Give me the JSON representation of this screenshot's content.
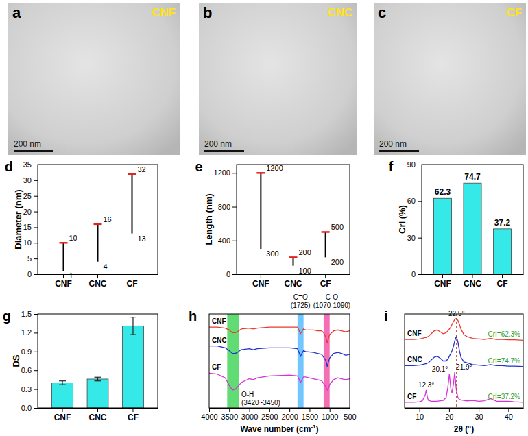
{
  "chart_data": [
    {
      "type": "image",
      "panel": "a",
      "label": "CNF",
      "scale_bar": "200 nm"
    },
    {
      "type": "image",
      "panel": "b",
      "label": "CNC",
      "scale_bar": "200 nm"
    },
    {
      "type": "image",
      "panel": "c",
      "label": "CF",
      "scale_bar": "200 nm"
    },
    {
      "type": "range",
      "panel": "d",
      "ylabel": "Diameter (nm)",
      "categories": [
        "CNF",
        "CNC",
        "CF"
      ],
      "low": [
        1,
        4,
        13
      ],
      "high": [
        10,
        16,
        32
      ],
      "ylim": [
        0,
        35
      ],
      "yticks": [
        0,
        5,
        10,
        15,
        20,
        25,
        30,
        35
      ],
      "data_labels": true,
      "color": "#000000"
    },
    {
      "type": "range",
      "panel": "e",
      "ylabel": "Length (nm)",
      "categories": [
        "CNF",
        "CNC",
        "CF"
      ],
      "low": [
        300,
        100,
        200
      ],
      "high": [
        1200,
        200,
        500
      ],
      "ylim": [
        0,
        1300
      ],
      "yticks": [
        0,
        400,
        800,
        1200
      ],
      "data_labels": true,
      "color": "#000000"
    },
    {
      "type": "bar",
      "panel": "f",
      "ylabel": "CrI (%)",
      "categories": [
        "CNF",
        "CNC",
        "CF"
      ],
      "values": [
        62.3,
        74.7,
        37.2
      ],
      "ylim": [
        0,
        90
      ],
      "yticks": [
        0,
        30,
        60,
        90
      ],
      "data_labels": true,
      "color": "#36e9e9"
    },
    {
      "type": "bar",
      "panel": "g",
      "ylabel": "DS",
      "categories": [
        "CNF",
        "CNC",
        "CF"
      ],
      "values": [
        0.4,
        0.46,
        1.31
      ],
      "errors": [
        0.03,
        0.03,
        0.14
      ],
      "ylim": [
        0,
        1.5
      ],
      "yticks": [
        {
          "value": 0,
          "label": "0.0"
        },
        0.3,
        0.6,
        0.9,
        1.2,
        1.5
      ],
      "color": "#36e9e9"
    },
    {
      "type": "line",
      "panel": "h",
      "xlabel": [
        "Wave number (cm",
        "-1",
        ")"
      ],
      "x": [
        4000,
        3800,
        3600,
        3500,
        3420,
        3350,
        3300,
        3200,
        3000,
        2900,
        2800,
        2500,
        2000,
        1800,
        1725,
        1650,
        1600,
        1400,
        1300,
        1200,
        1150,
        1090,
        1060,
        1030,
        1000,
        900,
        800,
        700,
        600,
        500
      ],
      "xlim": [
        4000,
        500
      ],
      "xticks": [
        4000,
        3500,
        3000,
        2500,
        2000,
        1500,
        1000,
        500
      ],
      "ylim": [
        0,
        10
      ],
      "tick_labels": "x",
      "series": [
        {
          "name": "CNF",
          "color": "#e8392e",
          "values": [
            8.6,
            8.6,
            8.5,
            8.3,
            8.0,
            8.0,
            8.1,
            8.4,
            8.5,
            8.4,
            8.5,
            8.6,
            8.6,
            8.6,
            7.9,
            8.4,
            8.3,
            8.3,
            8.2,
            8.2,
            8.0,
            7.5,
            6.9,
            7.4,
            7.8,
            8.2,
            8.3,
            8.2,
            8.1,
            8.2
          ]
        },
        {
          "name": "CNC",
          "color": "#2233cc",
          "values": [
            6.6,
            6.6,
            6.4,
            6.1,
            5.8,
            5.8,
            5.9,
            6.2,
            6.3,
            6.2,
            6.3,
            6.4,
            6.4,
            6.3,
            5.5,
            6.1,
            6.0,
            5.9,
            5.8,
            5.7,
            5.4,
            5.0,
            4.4,
            4.9,
            5.3,
            5.8,
            5.9,
            5.8,
            5.6,
            5.7
          ]
        },
        {
          "name": "CF",
          "color": "#d633d6",
          "values": [
            3.7,
            3.6,
            3.2,
            2.4,
            1.9,
            2.0,
            2.2,
            2.7,
            3.1,
            3.0,
            3.2,
            3.4,
            3.5,
            3.4,
            2.7,
            3.3,
            3.3,
            3.1,
            3.0,
            2.9,
            2.6,
            2.2,
            1.9,
            2.1,
            2.5,
            3.0,
            3.2,
            3.1,
            3.0,
            3.1
          ]
        }
      ],
      "regions": [
        {
          "x0": 3550,
          "x1": 3250,
          "color": "#39d353",
          "label": "O-H",
          "sublabel": "(3420~3450)"
        },
        {
          "x0": 1800,
          "x1": 1650,
          "color": "#4db8ff",
          "label": "C=O",
          "sublabel": "(1725)"
        },
        {
          "x0": 1150,
          "x1": 1000,
          "color": "#f04aa0",
          "label": "C-O",
          "sublabel": "(1070-1090)"
        }
      ]
    },
    {
      "type": "line",
      "panel": "i",
      "xlabel": "2θ (°)",
      "x": [
        5,
        8,
        10,
        11,
        12,
        12.3,
        12.6,
        13,
        14,
        15,
        16,
        17,
        18,
        19,
        19.6,
        20.1,
        20.6,
        21,
        21.5,
        21.9,
        22.3,
        22.5,
        23,
        23.5,
        24,
        25,
        26,
        28,
        30,
        32,
        34,
        35,
        36,
        38,
        40,
        42,
        45
      ],
      "xlim": [
        5,
        45
      ],
      "xticks": [
        10,
        20,
        30,
        40
      ],
      "ylim": [
        0,
        10
      ],
      "tick_labels": "x",
      "series": [
        {
          "name": "CNF",
          "color": "#e8392e",
          "label": "CrI=62.3%",
          "values": [
            7.3,
            7.3,
            7.35,
            7.4,
            7.5,
            7.5,
            7.55,
            7.6,
            7.9,
            8.2,
            8.3,
            8.1,
            7.9,
            8.0,
            8.2,
            8.4,
            8.6,
            8.9,
            9.2,
            9.4,
            9.5,
            9.5,
            9.3,
            8.9,
            8.4,
            7.8,
            7.6,
            7.4,
            7.35,
            7.3,
            7.4,
            7.35,
            7.3,
            7.3,
            7.25,
            7.25,
            7.2
          ]
        },
        {
          "name": "CNC",
          "color": "#2233cc",
          "label": "CrI=74.7%",
          "values": [
            4.5,
            4.5,
            4.55,
            4.6,
            4.7,
            4.7,
            4.75,
            4.8,
            5.1,
            5.4,
            5.5,
            5.3,
            5.0,
            5.0,
            5.2,
            5.5,
            5.8,
            6.1,
            6.6,
            7.1,
            7.5,
            7.6,
            7.0,
            6.1,
            5.4,
            4.9,
            4.8,
            4.6,
            4.55,
            4.5,
            4.6,
            4.55,
            4.5,
            4.5,
            4.45,
            4.45,
            4.4
          ]
        },
        {
          "name": "CF",
          "color": "#d633d6",
          "label": "CrI=37.2%",
          "values": [
            0.6,
            0.6,
            0.65,
            0.75,
            1.4,
            1.9,
            1.3,
            0.8,
            0.7,
            0.7,
            0.7,
            0.75,
            0.8,
            1.1,
            2.2,
            3.6,
            2.0,
            1.6,
            2.6,
            3.8,
            2.4,
            1.8,
            1.1,
            0.9,
            0.85,
            0.8,
            0.75,
            0.8,
            0.7,
            0.75,
            1.0,
            0.85,
            0.7,
            0.7,
            0.7,
            0.65,
            0.6
          ]
        }
      ],
      "annotations": [
        {
          "x": 22.5,
          "label": "22.5°",
          "series": 0,
          "line_style": "dashed"
        },
        {
          "x": 12.3,
          "label": "12.3°",
          "series": 2
        },
        {
          "x": 20.1,
          "label": "20.1°",
          "series": 2
        },
        {
          "x": 21.9,
          "label": "21.9°",
          "series": 2
        }
      ]
    }
  ]
}
